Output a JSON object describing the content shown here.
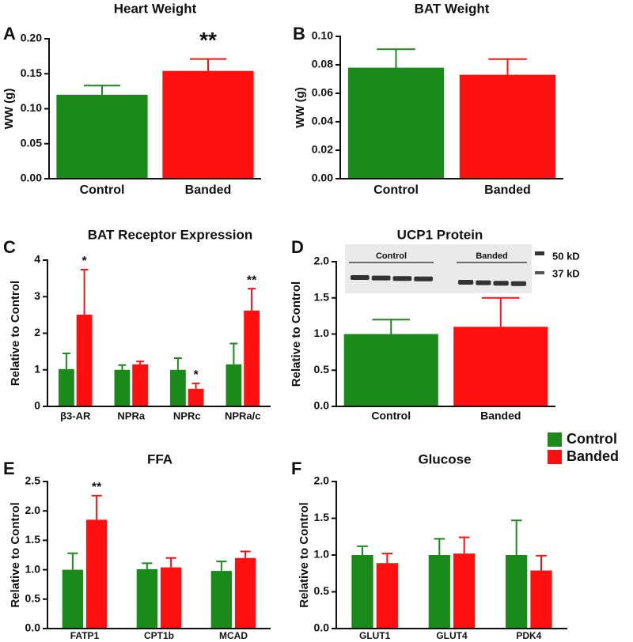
{
  "chart_data": [
    {
      "type": "bar",
      "panel_label": "A",
      "title": "Heart Weight",
      "ylabel": "WW (g)",
      "categories": [
        "Control",
        "Banded"
      ],
      "values": [
        0.12,
        0.154
      ],
      "errors": [
        0.013,
        0.017
      ],
      "colors": [
        "#1a8a1a",
        "#ff1010"
      ],
      "annotations": [
        null,
        "**"
      ],
      "ylim": [
        0,
        0.2
      ],
      "yticks": [
        {
          "value": 0,
          "label": "0.00"
        },
        {
          "value": 0.05,
          "label": "0.05"
        },
        {
          "value": 0.1,
          "label": "0.10"
        },
        {
          "value": 0.15,
          "label": "0.15"
        },
        {
          "value": 0.2,
          "label": "0.20"
        }
      ]
    },
    {
      "type": "bar",
      "panel_label": "B",
      "title": "BAT Weight",
      "ylabel": "WW (g)",
      "categories": [
        "Control",
        "Banded"
      ],
      "values": [
        0.078,
        0.073
      ],
      "errors": [
        0.013,
        0.011
      ],
      "colors": [
        "#1a8a1a",
        "#ff1010"
      ],
      "ylim": [
        0,
        0.1
      ],
      "yticks": [
        {
          "value": 0,
          "label": "0.00"
        },
        {
          "value": 0.02,
          "label": "0.02"
        },
        {
          "value": 0.04,
          "label": "0.04"
        },
        {
          "value": 0.06,
          "label": "0.06"
        },
        {
          "value": 0.08,
          "label": "0.08"
        },
        {
          "value": 0.1,
          "label": "0.10"
        }
      ]
    },
    {
      "type": "bar",
      "panel_label": "C",
      "title": "BAT Receptor Expression",
      "ylabel": "Relative to Control",
      "categories": [
        "β3-AR",
        "NPRa",
        "NPRc",
        "NPRa/c"
      ],
      "series": [
        {
          "color": "#1a8a1a",
          "values": [
            1.02,
            1.0,
            1.0,
            1.15
          ],
          "errors": [
            0.43,
            0.13,
            0.32,
            0.57
          ]
        },
        {
          "color": "#ff1010",
          "values": [
            2.51,
            1.15,
            0.48,
            2.62
          ],
          "errors": [
            1.23,
            0.08,
            0.15,
            0.6
          ],
          "annotations": [
            "*",
            null,
            "*",
            "**"
          ]
        }
      ],
      "ylim": [
        0,
        4
      ],
      "yticks": [
        0,
        1,
        2,
        3,
        4
      ]
    },
    {
      "type": "bar",
      "panel_label": "D",
      "title": "UCP1 Protein",
      "ylabel": "Relative to Control",
      "categories": [
        "Control",
        "Banded"
      ],
      "values": [
        1.0,
        1.1
      ],
      "errors": [
        0.2,
        0.4
      ],
      "colors": [
        "#1a8a1a",
        "#ff1010"
      ],
      "inset": {
        "groups": [
          "Control",
          "Banded"
        ],
        "markers": [
          "50 kD",
          "37 kD"
        ]
      },
      "ylim": [
        0,
        2
      ],
      "yticks": [
        {
          "value": 0,
          "label": "0.0"
        },
        0.5,
        {
          "value": 1,
          "label": "1.0"
        },
        1.5,
        {
          "value": 2,
          "label": "2.0"
        }
      ]
    },
    {
      "type": "bar",
      "panel_label": "E",
      "title": "FFA",
      "ylabel": "Relative to Control",
      "categories": [
        "FATP1",
        "CPT1b",
        "MCAD"
      ],
      "series": [
        {
          "name": "Control",
          "color": "#1a8a1a",
          "values": [
            1.0,
            1.01,
            0.98
          ],
          "errors": [
            0.28,
            0.1,
            0.16
          ]
        },
        {
          "name": "Banded",
          "color": "#ff1010",
          "values": [
            1.85,
            1.04,
            1.2
          ],
          "errors": [
            0.41,
            0.16,
            0.11
          ],
          "annotations": [
            "**",
            null,
            null
          ]
        }
      ],
      "legend": "top-right",
      "ylim": [
        0,
        2.5
      ],
      "yticks": [
        {
          "value": 0,
          "label": "0.0"
        },
        0.5,
        {
          "value": 1,
          "label": "1.0"
        },
        1.5,
        {
          "value": 2,
          "label": "2.0"
        },
        2.5
      ]
    },
    {
      "type": "bar",
      "panel_label": "F",
      "title": "Glucose",
      "ylabel": "Relative to Control",
      "categories": [
        "GLUT1",
        "GLUT4",
        "PDK4"
      ],
      "series": [
        {
          "color": "#1a8a1a",
          "values": [
            1.0,
            1.0,
            1.0
          ],
          "errors": [
            0.12,
            0.22,
            0.47
          ]
        },
        {
          "color": "#ff1010",
          "values": [
            0.89,
            1.02,
            0.79
          ],
          "errors": [
            0.13,
            0.22,
            0.2
          ]
        }
      ],
      "ylim": [
        0,
        2
      ],
      "yticks": [
        {
          "value": 0,
          "label": "0.0"
        },
        0.5,
        {
          "value": 1,
          "label": "1.0"
        },
        1.5,
        {
          "value": 2,
          "label": "2.0"
        }
      ]
    }
  ]
}
